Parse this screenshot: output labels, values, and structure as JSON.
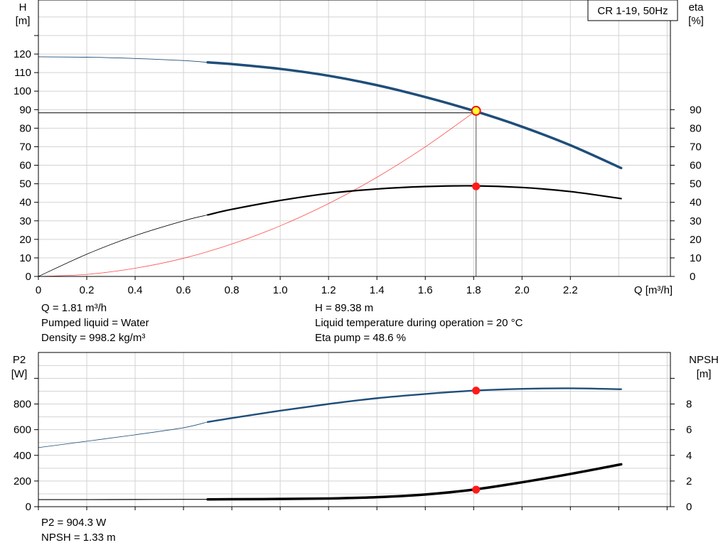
{
  "chart_data": [
    {
      "type": "line",
      "title": "CR 1-19, 50Hz",
      "xlabel": "Q [m³/h]",
      "ylabel_left": "H [m]",
      "ylabel_right": "eta [%]",
      "xlim": [
        0,
        2.6
      ],
      "ylim_left": [
        0,
        130
      ],
      "ylim_right": [
        0,
        130
      ],
      "x_ticks": [
        "0",
        "0.2",
        "0.4",
        "0.6",
        "0.8",
        "1.0",
        "1.2",
        "1.4",
        "1.6",
        "1.8",
        "2.0",
        "2.2"
      ],
      "y_ticks_left": [
        "0",
        "10",
        "20",
        "30",
        "40",
        "50",
        "60",
        "70",
        "80",
        "90",
        "100",
        "110",
        "120"
      ],
      "y_ticks_right": [
        "0",
        "10",
        "20",
        "30",
        "40",
        "50",
        "60",
        "70",
        "80",
        "90"
      ],
      "grid": true,
      "series": [
        {
          "name": "H",
          "color": "#1f4e79",
          "x": [
            0,
            0.2,
            0.4,
            0.6,
            0.7,
            0.8,
            1.0,
            1.2,
            1.4,
            1.6,
            1.8,
            2.0,
            2.2,
            2.41
          ],
          "values": [
            118.5,
            118.3,
            117.6,
            116.5,
            115.5,
            114.6,
            112.0,
            108.3,
            103.2,
            96.8,
            89.4,
            80.8,
            70.8,
            58.5
          ],
          "bold_from_x": 0.7
        },
        {
          "name": "eta",
          "color": "#000000",
          "x": [
            0,
            0.2,
            0.4,
            0.6,
            0.7,
            0.8,
            1.0,
            1.2,
            1.4,
            1.6,
            1.8,
            2.0,
            2.2,
            2.41
          ],
          "values": [
            0,
            12.0,
            22.0,
            30.0,
            33.2,
            36.2,
            41.0,
            44.8,
            47.2,
            48.5,
            48.9,
            48.0,
            45.8,
            42.0
          ],
          "bold_from_x": 0.7
        },
        {
          "name": "system curve",
          "color": "#ff4a4a",
          "x": [
            0,
            0.2,
            0.4,
            0.6,
            0.8,
            1.0,
            1.2,
            1.4,
            1.6,
            1.81
          ],
          "values": [
            0,
            1.1,
            4.4,
            9.8,
            17.5,
            27.3,
            39.3,
            53.5,
            69.9,
            89.4
          ]
        }
      ],
      "operating_point": {
        "x": 1.81,
        "H": 89.38,
        "eta": 48.6
      },
      "annotations": {
        "left": [
          "Q = 1.81 m³/h",
          "Pumped liquid = Water",
          "Density = 998.2 kg/m³"
        ],
        "right": [
          "H = 89.38 m",
          "Liquid temperature during operation = 20 °C",
          "Eta pump = 48.6 %"
        ]
      }
    },
    {
      "type": "line",
      "ylabel_left": "P2 [W]",
      "ylabel_right": "NPSH [m]",
      "xlim": [
        0,
        2.6
      ],
      "ylim_left": [
        0,
        1000
      ],
      "ylim_right": [
        0,
        10
      ],
      "y_ticks_left": [
        "0",
        "200",
        "400",
        "600",
        "800"
      ],
      "y_ticks_right": [
        "0",
        "2",
        "4",
        "6",
        "8"
      ],
      "grid": true,
      "series": [
        {
          "name": "P2",
          "color": "#1f4e79",
          "axis": "left",
          "x": [
            0,
            0.2,
            0.4,
            0.6,
            0.7,
            0.8,
            1.0,
            1.2,
            1.4,
            1.6,
            1.8,
            2.0,
            2.2,
            2.41
          ],
          "values": [
            460,
            510,
            560,
            615,
            660,
            690,
            748,
            800,
            845,
            878,
            904,
            918,
            922,
            915
          ],
          "bold_from_x": 0.7
        },
        {
          "name": "NPSH",
          "color": "#000000",
          "axis": "right",
          "x": [
            0,
            0.2,
            0.4,
            0.6,
            0.7,
            0.8,
            1.0,
            1.2,
            1.4,
            1.6,
            1.8,
            2.0,
            2.2,
            2.41
          ],
          "values": [
            0.55,
            0.55,
            0.56,
            0.57,
            0.57,
            0.58,
            0.6,
            0.64,
            0.74,
            0.95,
            1.33,
            1.9,
            2.55,
            3.3
          ],
          "bold_from_x": 0.7
        }
      ],
      "operating_point": {
        "x": 1.81,
        "P2": 904.3,
        "NPSH": 1.33
      },
      "annotations": {
        "left": [
          "P2 = 904.3 W",
          "NPSH = 1.33 m"
        ]
      }
    }
  ]
}
